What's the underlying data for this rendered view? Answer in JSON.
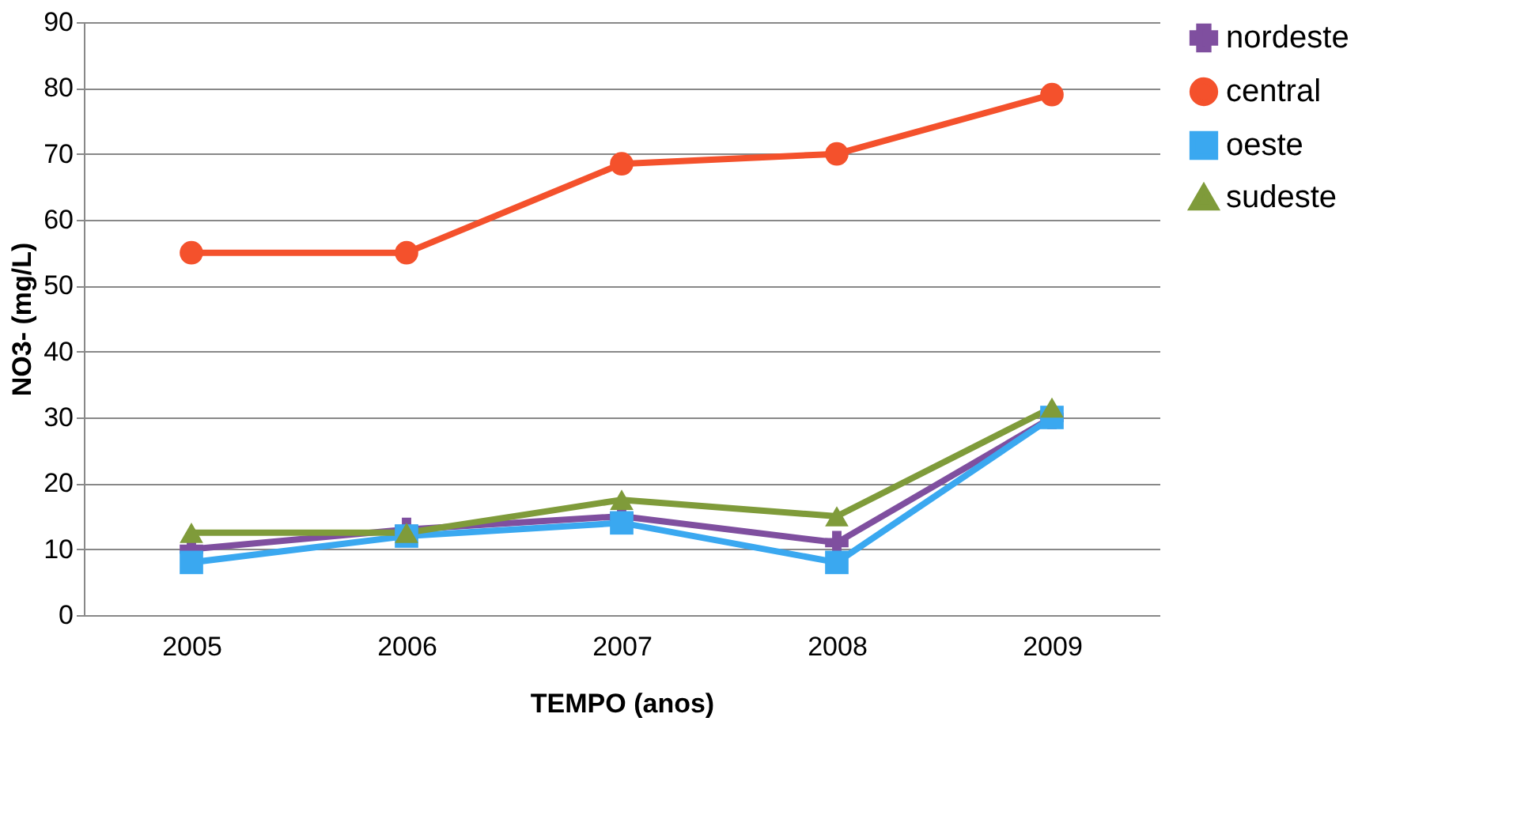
{
  "chart_data": {
    "type": "line",
    "xlabel": "TEMPO (anos)",
    "ylabel": "NO3- (mg/L)",
    "categories": [
      "2005",
      "2006",
      "2007",
      "2008",
      "2009"
    ],
    "series": [
      {
        "name": "nordeste",
        "color": "#7f4f9f",
        "marker": "cross",
        "values": [
          10,
          13,
          15,
          11,
          30
        ]
      },
      {
        "name": "central",
        "color": "#f4512c",
        "marker": "circle",
        "values": [
          55,
          55,
          68.5,
          70,
          79
        ]
      },
      {
        "name": "oeste",
        "color": "#3aa8f0",
        "marker": "square",
        "values": [
          8,
          12,
          14,
          8,
          30
        ]
      },
      {
        "name": "sudeste",
        "color": "#7f9b3a",
        "marker": "triangle",
        "values": [
          12.5,
          12.5,
          17.5,
          15,
          31.5
        ]
      }
    ],
    "ylim": [
      0,
      90
    ],
    "yticks": [
      0,
      10,
      20,
      30,
      40,
      50,
      60,
      70,
      80,
      90
    ],
    "grid": "y",
    "legend": "right"
  }
}
